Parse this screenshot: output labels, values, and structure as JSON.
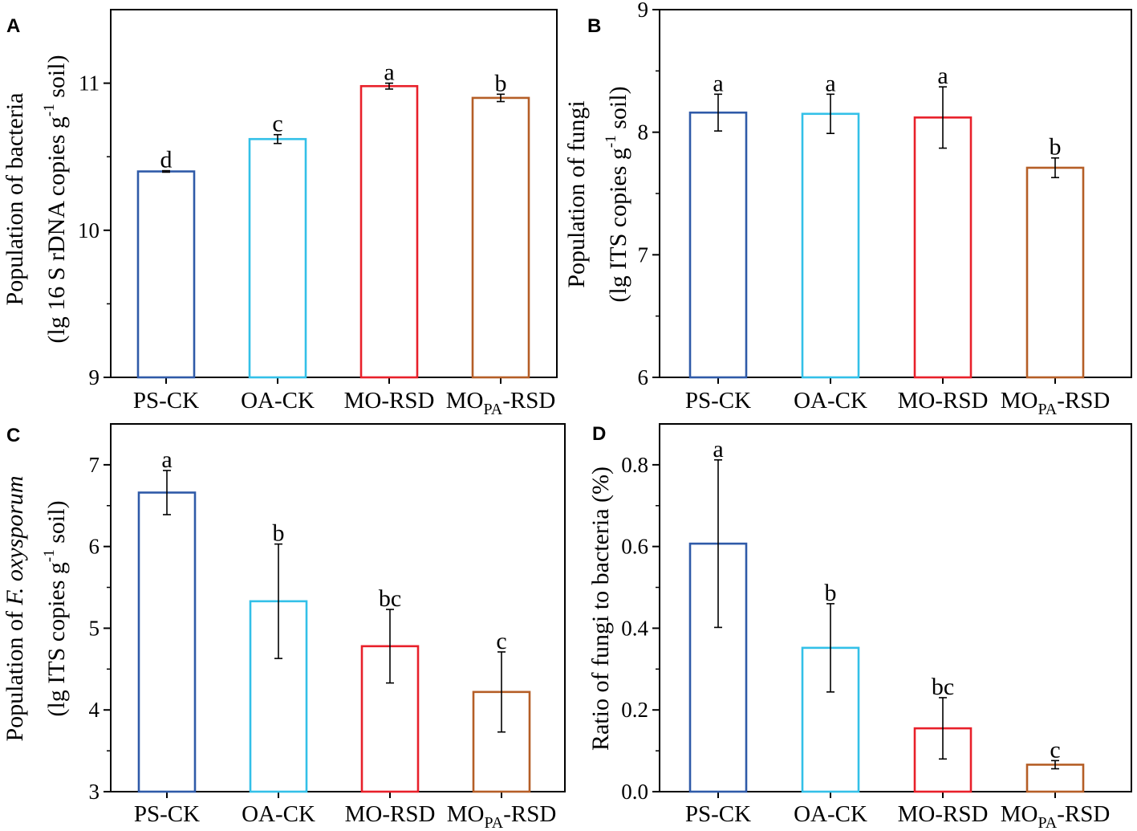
{
  "figure": {
    "colors": {
      "PS-CK": "#2f5aa8",
      "OA-CK": "#33c0e8",
      "MO-RSD": "#e8202a",
      "MOPA-RSD": "#b55e26",
      "axis": "#000000"
    }
  },
  "chart_data": [
    {
      "panel": "A",
      "type": "bar",
      "categories": [
        {
          "main": "PS-CK",
          "sub": "",
          "rest": ""
        },
        {
          "main": "OA-CK",
          "sub": "",
          "rest": ""
        },
        {
          "main": "MO-RSD",
          "sub": "",
          "rest": ""
        },
        {
          "main": "MO",
          "sub": "PA",
          "rest": "-RSD"
        }
      ],
      "series_keys": [
        "PS-CK",
        "OA-CK",
        "MO-RSD",
        "MOPA-RSD"
      ],
      "values": [
        10.4,
        10.62,
        10.98,
        10.9
      ],
      "errors": [
        0.005,
        0.03,
        0.02,
        0.025
      ],
      "significance": [
        "d",
        "c",
        "a",
        "b"
      ],
      "ylim": [
        9,
        11.5
      ],
      "yticks": [
        9,
        10,
        11
      ],
      "ylabel": {
        "line1": "Population of bacteria",
        "line2_prefix": "(lg 16 S rDNA copies g",
        "line2_sup": "-1",
        "line2_suffix": " soil)"
      }
    },
    {
      "panel": "B",
      "type": "bar",
      "categories": [
        {
          "main": "PS-CK",
          "sub": "",
          "rest": ""
        },
        {
          "main": "OA-CK",
          "sub": "",
          "rest": ""
        },
        {
          "main": "MO-RSD",
          "sub": "",
          "rest": ""
        },
        {
          "main": "MO",
          "sub": "PA",
          "rest": "-RSD"
        }
      ],
      "series_keys": [
        "PS-CK",
        "OA-CK",
        "MO-RSD",
        "MOPA-RSD"
      ],
      "values": [
        8.16,
        8.15,
        8.12,
        7.71
      ],
      "errors": [
        0.15,
        0.16,
        0.25,
        0.08
      ],
      "significance": [
        "a",
        "a",
        "a",
        "b"
      ],
      "ylim": [
        6,
        9
      ],
      "yticks": [
        6,
        7,
        8,
        9
      ],
      "ylabel": {
        "line1": "Population of fungi",
        "line2_prefix": "(lg ITS copies g",
        "line2_sup": "-1",
        "line2_suffix": " soil)"
      }
    },
    {
      "panel": "C",
      "type": "bar",
      "categories": [
        {
          "main": "PS-CK",
          "sub": "",
          "rest": ""
        },
        {
          "main": "OA-CK",
          "sub": "",
          "rest": ""
        },
        {
          "main": "MO-RSD",
          "sub": "",
          "rest": ""
        },
        {
          "main": "MO",
          "sub": "PA",
          "rest": "-RSD"
        }
      ],
      "series_keys": [
        "PS-CK",
        "OA-CK",
        "MO-RSD",
        "MOPA-RSD"
      ],
      "values": [
        6.66,
        5.33,
        4.78,
        4.22
      ],
      "errors": [
        0.27,
        0.7,
        0.45,
        0.49
      ],
      "significance": [
        "a",
        "b",
        "bc",
        "c"
      ],
      "ylim": [
        3,
        7.5
      ],
      "yticks": [
        3,
        4,
        5,
        6,
        7
      ],
      "ylabel": {
        "line1_prefix": "Population of ",
        "line1_italic": "F. oxysporum",
        "line2_prefix": "(lg ITS copies g",
        "line2_sup": "-1",
        "line2_suffix": " soil)"
      }
    },
    {
      "panel": "D",
      "type": "bar",
      "categories": [
        {
          "main": "PS-CK",
          "sub": "",
          "rest": ""
        },
        {
          "main": "OA-CK",
          "sub": "",
          "rest": ""
        },
        {
          "main": "MO-RSD",
          "sub": "",
          "rest": ""
        },
        {
          "main": "MO",
          "sub": "PA",
          "rest": "-RSD"
        }
      ],
      "series_keys": [
        "PS-CK",
        "OA-CK",
        "MO-RSD",
        "MOPA-RSD"
      ],
      "values": [
        0.607,
        0.352,
        0.155,
        0.066
      ],
      "errors": [
        0.205,
        0.108,
        0.075,
        0.01
      ],
      "significance": [
        "a",
        "b",
        "bc",
        "c"
      ],
      "ylim": [
        0,
        0.9
      ],
      "yticks": [
        "0.0",
        "0.2",
        "0.4",
        "0.6",
        "0.8"
      ],
      "ylabel": {
        "line1": "Ratio of fungi to bacteria (%)"
      }
    }
  ]
}
